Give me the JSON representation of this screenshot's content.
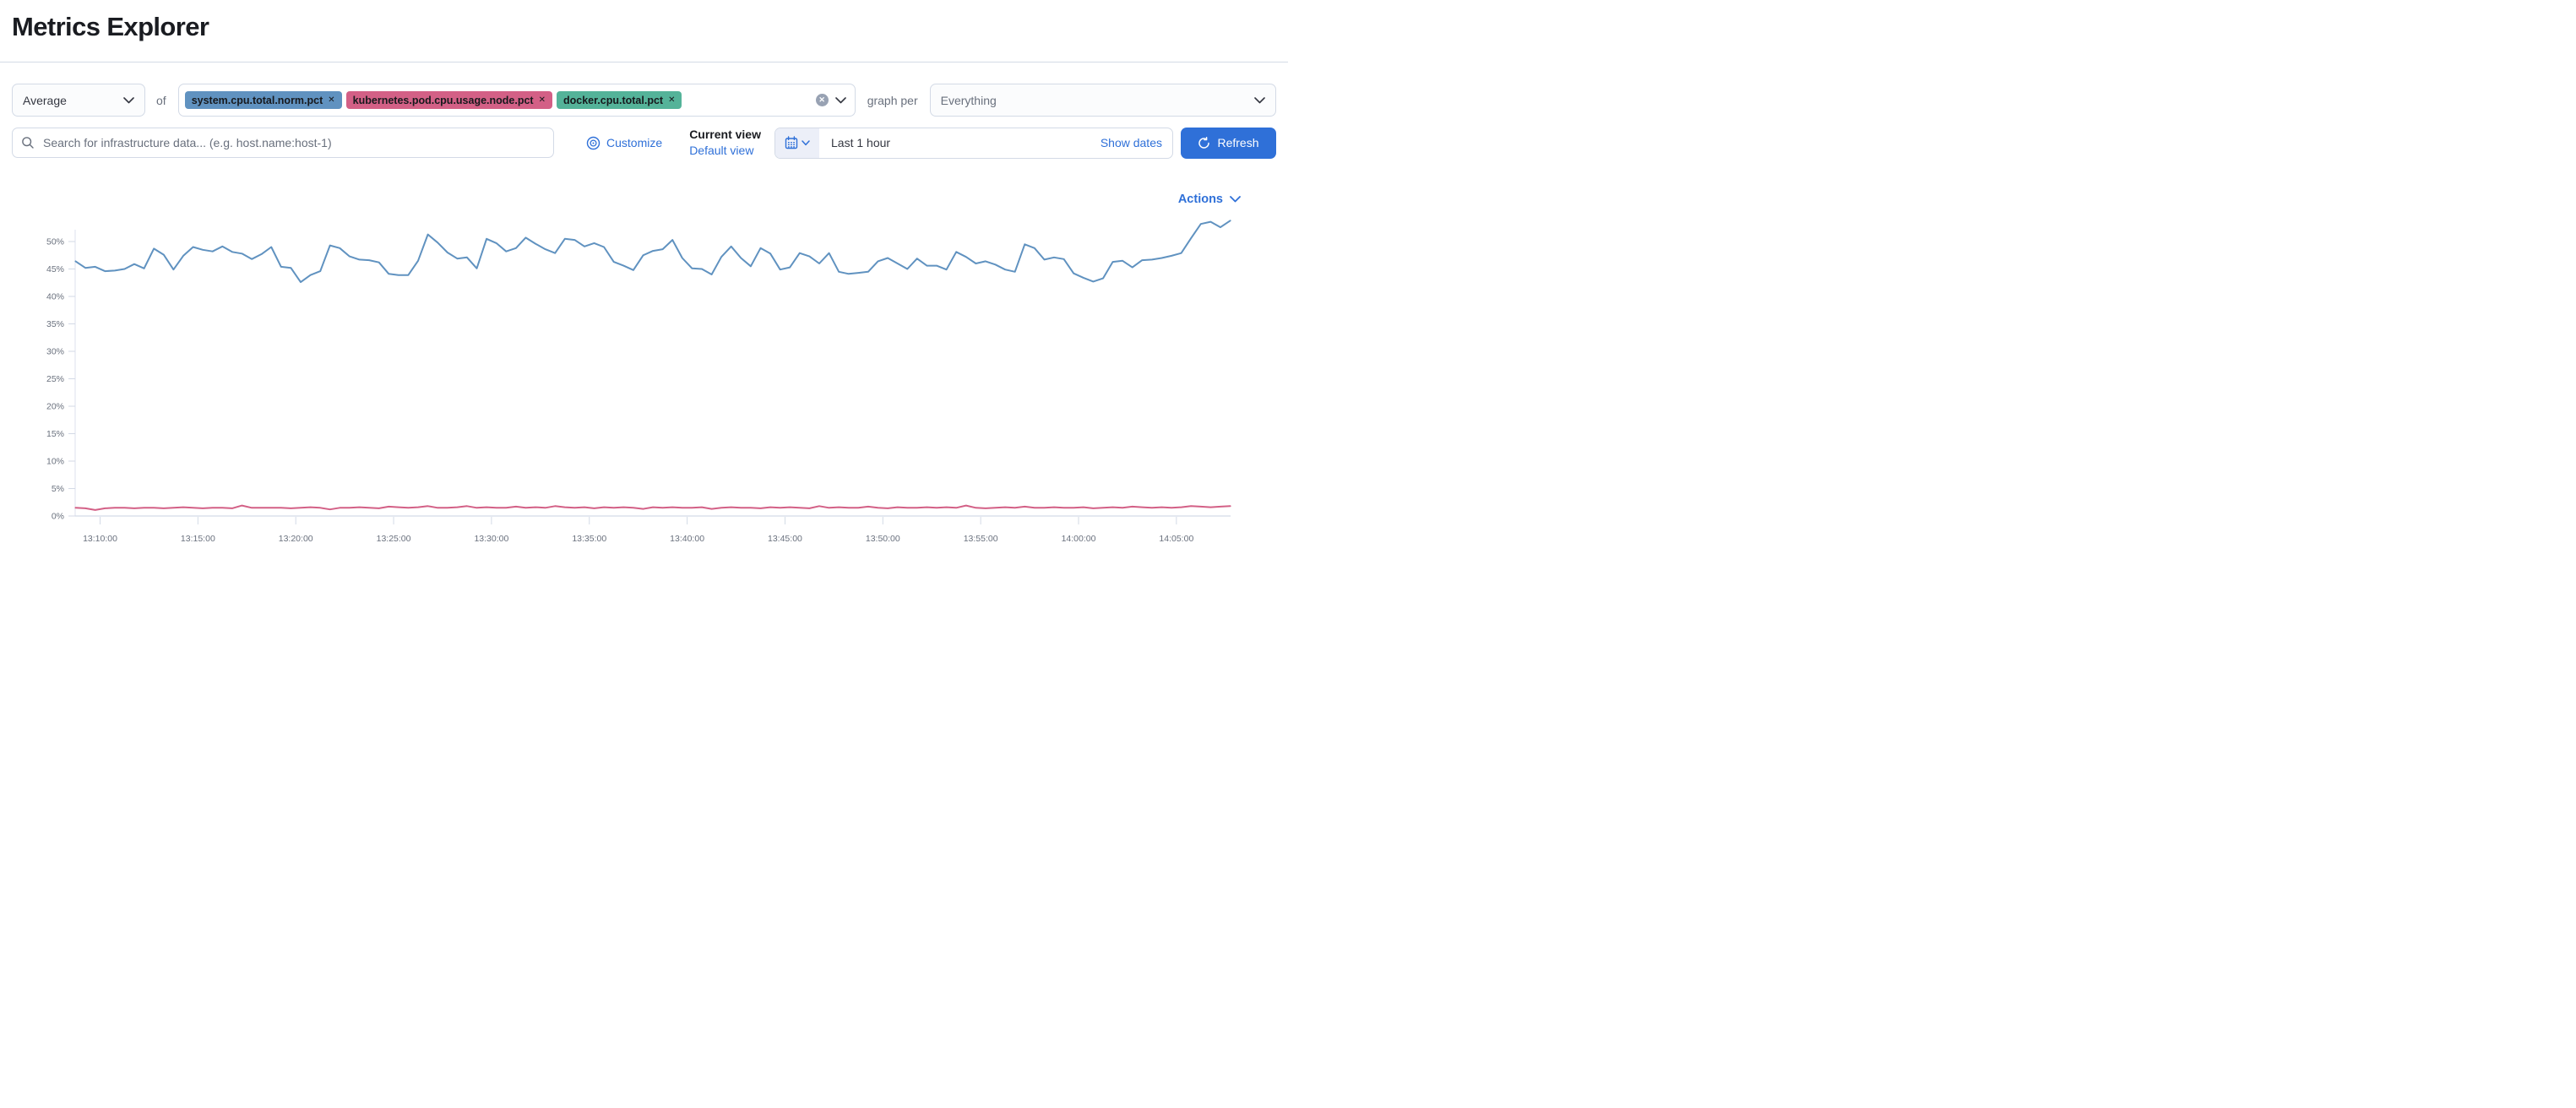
{
  "page": {
    "title": "Metrics Explorer"
  },
  "colors": {
    "accent": "#2F70D8",
    "border": "#D3DAE6",
    "text": "#343741",
    "subdued": "#69707D",
    "axis_line": "#DDE2EC"
  },
  "icons": {
    "agg_chevron": "chevron-down-icon",
    "combo_clear": "cross-in-circle-icon",
    "combo_chevron": "chevron-down-icon",
    "group_chevron": "chevron-down-icon",
    "search": "magnifier-icon",
    "customize": "eye-target-icon",
    "calendar": "calendar-icon",
    "calendar_chevron": "chevron-down-icon",
    "refresh": "refresh-circular-arrow-icon",
    "actions_chevron": "chevron-down-icon",
    "tag_remove": "cross-icon"
  },
  "toolbar": {
    "aggregation": {
      "value": "Average"
    },
    "of_label": "of",
    "metrics": [
      {
        "label": "system.cpu.total.norm.pct",
        "remove_glyph": "✕",
        "color": "#6092C0"
      },
      {
        "label": "kubernetes.pod.cpu.usage.node.pct",
        "remove_glyph": "✕",
        "color": "#D36086"
      },
      {
        "label": "docker.cpu.total.pct",
        "remove_glyph": "✕",
        "color": "#54B399"
      }
    ],
    "clear_glyph": "✕",
    "graph_per_label": "graph per",
    "group_by": {
      "value": "Everything"
    }
  },
  "filter_bar": {
    "search": {
      "placeholder": "Search for infrastructure data... (e.g. host.name:host-1)"
    },
    "customize_label": "Customize",
    "current_view_label": "Current view",
    "default_view_label": "Default view",
    "time_range": {
      "value": "Last 1 hour",
      "show_dates_label": "Show dates"
    },
    "refresh_label": "Refresh"
  },
  "chart_section": {
    "actions_label": "Actions"
  },
  "chart_data": {
    "type": "line",
    "title": "",
    "xlabel": "",
    "ylabel": "",
    "ylim": [
      0,
      55
    ],
    "y_tick_step": 5,
    "y_tick_labels": [
      "0%",
      "5%",
      "10%",
      "15%",
      "20%",
      "25%",
      "30%",
      "35%",
      "40%",
      "45%",
      "50%"
    ],
    "x_tick_labels": [
      "13:10:00",
      "13:15:00",
      "13:20:00",
      "13:25:00",
      "13:30:00",
      "13:35:00",
      "13:40:00",
      "13:45:00",
      "13:50:00",
      "13:55:00",
      "14:00:00",
      "14:05:00"
    ],
    "grid": false,
    "legend": "none",
    "x_start_time": "13:08:45",
    "x_interval_seconds": 30,
    "series": [
      {
        "name": "system.cpu.total.norm.pct",
        "color": "#6092C0",
        "unit": "%",
        "values": [
          46.4,
          45.2,
          45.4,
          44.6,
          44.7,
          45.0,
          45.9,
          45.1,
          48.7,
          47.6,
          44.9,
          47.4,
          49.0,
          48.5,
          48.2,
          49.1,
          48.1,
          47.8,
          46.8,
          47.7,
          49.0,
          45.4,
          45.2,
          42.6,
          43.9,
          44.6,
          49.3,
          48.8,
          47.3,
          46.7,
          46.6,
          46.2,
          44.1,
          43.9,
          43.9,
          46.5,
          51.3,
          49.8,
          48.0,
          46.9,
          47.1,
          45.1,
          50.5,
          49.7,
          48.2,
          48.8,
          50.7,
          49.6,
          48.6,
          47.9,
          50.5,
          50.3,
          49.1,
          49.7,
          49.0,
          46.3,
          45.6,
          44.8,
          47.5,
          48.3,
          48.6,
          50.3,
          47.0,
          45.1,
          45.0,
          44.0,
          47.2,
          49.1,
          47.0,
          45.5,
          48.8,
          47.8,
          44.9,
          45.3,
          47.9,
          47.3,
          46.0,
          47.9,
          44.5,
          44.1,
          44.3,
          44.5,
          46.4,
          47.0,
          46.0,
          45.0,
          46.9,
          45.6,
          45.6,
          44.9,
          48.1,
          47.2,
          46.0,
          46.4,
          45.8,
          44.9,
          44.5,
          49.5,
          48.8,
          46.7,
          47.1,
          46.8,
          44.2,
          43.4,
          42.7,
          43.3,
          46.3,
          46.5,
          45.3,
          46.6,
          46.7,
          47.0,
          47.4,
          47.9,
          50.6,
          53.2,
          53.6,
          52.6,
          53.8
        ]
      },
      {
        "name": "kubernetes.pod.cpu.usage.node.pct",
        "color": "#D36086",
        "unit": "%",
        "values": [
          1.5,
          1.4,
          1.1,
          1.4,
          1.5,
          1.5,
          1.4,
          1.5,
          1.5,
          1.4,
          1.5,
          1.6,
          1.5,
          1.4,
          1.5,
          1.5,
          1.4,
          1.9,
          1.5,
          1.5,
          1.5,
          1.5,
          1.4,
          1.5,
          1.6,
          1.5,
          1.2,
          1.5,
          1.5,
          1.6,
          1.5,
          1.4,
          1.7,
          1.6,
          1.5,
          1.6,
          1.8,
          1.5,
          1.5,
          1.6,
          1.8,
          1.5,
          1.6,
          1.5,
          1.5,
          1.7,
          1.5,
          1.6,
          1.5,
          1.8,
          1.6,
          1.5,
          1.6,
          1.4,
          1.6,
          1.5,
          1.6,
          1.5,
          1.3,
          1.6,
          1.5,
          1.6,
          1.5,
          1.5,
          1.6,
          1.3,
          1.5,
          1.6,
          1.5,
          1.5,
          1.4,
          1.6,
          1.5,
          1.6,
          1.5,
          1.4,
          1.8,
          1.5,
          1.6,
          1.5,
          1.5,
          1.7,
          1.5,
          1.4,
          1.6,
          1.5,
          1.5,
          1.6,
          1.5,
          1.6,
          1.5,
          1.9,
          1.5,
          1.4,
          1.5,
          1.6,
          1.5,
          1.7,
          1.5,
          1.5,
          1.6,
          1.5,
          1.5,
          1.6,
          1.4,
          1.5,
          1.6,
          1.5,
          1.7,
          1.6,
          1.5,
          1.6,
          1.5,
          1.6,
          1.8,
          1.7,
          1.6,
          1.7,
          1.8
        ]
      }
    ]
  }
}
